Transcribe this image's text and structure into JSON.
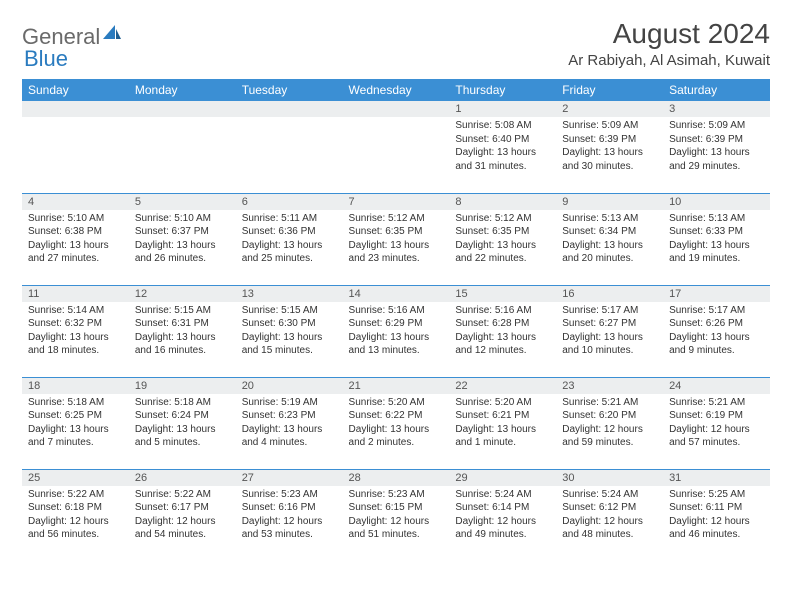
{
  "brand": {
    "part1": "General",
    "part2": "Blue"
  },
  "title": "August 2024",
  "location": "Ar Rabiyah, Al Asimah, Kuwait",
  "colors": {
    "header_bg": "#3b8fd4",
    "header_text": "#ffffff",
    "daynum_bg": "#eceeef",
    "rule": "#3b8fd4",
    "text": "#333333",
    "brand_gray": "#6a6a6a",
    "brand_blue": "#2a7bbf"
  },
  "day_headers": [
    "Sunday",
    "Monday",
    "Tuesday",
    "Wednesday",
    "Thursday",
    "Friday",
    "Saturday"
  ],
  "weeks": [
    [
      {},
      {},
      {},
      {},
      {
        "num": "1",
        "sunrise": "Sunrise: 5:08 AM",
        "sunset": "Sunset: 6:40 PM",
        "daylight1": "Daylight: 13 hours",
        "daylight2": "and 31 minutes."
      },
      {
        "num": "2",
        "sunrise": "Sunrise: 5:09 AM",
        "sunset": "Sunset: 6:39 PM",
        "daylight1": "Daylight: 13 hours",
        "daylight2": "and 30 minutes."
      },
      {
        "num": "3",
        "sunrise": "Sunrise: 5:09 AM",
        "sunset": "Sunset: 6:39 PM",
        "daylight1": "Daylight: 13 hours",
        "daylight2": "and 29 minutes."
      }
    ],
    [
      {
        "num": "4",
        "sunrise": "Sunrise: 5:10 AM",
        "sunset": "Sunset: 6:38 PM",
        "daylight1": "Daylight: 13 hours",
        "daylight2": "and 27 minutes."
      },
      {
        "num": "5",
        "sunrise": "Sunrise: 5:10 AM",
        "sunset": "Sunset: 6:37 PM",
        "daylight1": "Daylight: 13 hours",
        "daylight2": "and 26 minutes."
      },
      {
        "num": "6",
        "sunrise": "Sunrise: 5:11 AM",
        "sunset": "Sunset: 6:36 PM",
        "daylight1": "Daylight: 13 hours",
        "daylight2": "and 25 minutes."
      },
      {
        "num": "7",
        "sunrise": "Sunrise: 5:12 AM",
        "sunset": "Sunset: 6:35 PM",
        "daylight1": "Daylight: 13 hours",
        "daylight2": "and 23 minutes."
      },
      {
        "num": "8",
        "sunrise": "Sunrise: 5:12 AM",
        "sunset": "Sunset: 6:35 PM",
        "daylight1": "Daylight: 13 hours",
        "daylight2": "and 22 minutes."
      },
      {
        "num": "9",
        "sunrise": "Sunrise: 5:13 AM",
        "sunset": "Sunset: 6:34 PM",
        "daylight1": "Daylight: 13 hours",
        "daylight2": "and 20 minutes."
      },
      {
        "num": "10",
        "sunrise": "Sunrise: 5:13 AM",
        "sunset": "Sunset: 6:33 PM",
        "daylight1": "Daylight: 13 hours",
        "daylight2": "and 19 minutes."
      }
    ],
    [
      {
        "num": "11",
        "sunrise": "Sunrise: 5:14 AM",
        "sunset": "Sunset: 6:32 PM",
        "daylight1": "Daylight: 13 hours",
        "daylight2": "and 18 minutes."
      },
      {
        "num": "12",
        "sunrise": "Sunrise: 5:15 AM",
        "sunset": "Sunset: 6:31 PM",
        "daylight1": "Daylight: 13 hours",
        "daylight2": "and 16 minutes."
      },
      {
        "num": "13",
        "sunrise": "Sunrise: 5:15 AM",
        "sunset": "Sunset: 6:30 PM",
        "daylight1": "Daylight: 13 hours",
        "daylight2": "and 15 minutes."
      },
      {
        "num": "14",
        "sunrise": "Sunrise: 5:16 AM",
        "sunset": "Sunset: 6:29 PM",
        "daylight1": "Daylight: 13 hours",
        "daylight2": "and 13 minutes."
      },
      {
        "num": "15",
        "sunrise": "Sunrise: 5:16 AM",
        "sunset": "Sunset: 6:28 PM",
        "daylight1": "Daylight: 13 hours",
        "daylight2": "and 12 minutes."
      },
      {
        "num": "16",
        "sunrise": "Sunrise: 5:17 AM",
        "sunset": "Sunset: 6:27 PM",
        "daylight1": "Daylight: 13 hours",
        "daylight2": "and 10 minutes."
      },
      {
        "num": "17",
        "sunrise": "Sunrise: 5:17 AM",
        "sunset": "Sunset: 6:26 PM",
        "daylight1": "Daylight: 13 hours",
        "daylight2": "and 9 minutes."
      }
    ],
    [
      {
        "num": "18",
        "sunrise": "Sunrise: 5:18 AM",
        "sunset": "Sunset: 6:25 PM",
        "daylight1": "Daylight: 13 hours",
        "daylight2": "and 7 minutes."
      },
      {
        "num": "19",
        "sunrise": "Sunrise: 5:18 AM",
        "sunset": "Sunset: 6:24 PM",
        "daylight1": "Daylight: 13 hours",
        "daylight2": "and 5 minutes."
      },
      {
        "num": "20",
        "sunrise": "Sunrise: 5:19 AM",
        "sunset": "Sunset: 6:23 PM",
        "daylight1": "Daylight: 13 hours",
        "daylight2": "and 4 minutes."
      },
      {
        "num": "21",
        "sunrise": "Sunrise: 5:20 AM",
        "sunset": "Sunset: 6:22 PM",
        "daylight1": "Daylight: 13 hours",
        "daylight2": "and 2 minutes."
      },
      {
        "num": "22",
        "sunrise": "Sunrise: 5:20 AM",
        "sunset": "Sunset: 6:21 PM",
        "daylight1": "Daylight: 13 hours",
        "daylight2": "and 1 minute."
      },
      {
        "num": "23",
        "sunrise": "Sunrise: 5:21 AM",
        "sunset": "Sunset: 6:20 PM",
        "daylight1": "Daylight: 12 hours",
        "daylight2": "and 59 minutes."
      },
      {
        "num": "24",
        "sunrise": "Sunrise: 5:21 AM",
        "sunset": "Sunset: 6:19 PM",
        "daylight1": "Daylight: 12 hours",
        "daylight2": "and 57 minutes."
      }
    ],
    [
      {
        "num": "25",
        "sunrise": "Sunrise: 5:22 AM",
        "sunset": "Sunset: 6:18 PM",
        "daylight1": "Daylight: 12 hours",
        "daylight2": "and 56 minutes."
      },
      {
        "num": "26",
        "sunrise": "Sunrise: 5:22 AM",
        "sunset": "Sunset: 6:17 PM",
        "daylight1": "Daylight: 12 hours",
        "daylight2": "and 54 minutes."
      },
      {
        "num": "27",
        "sunrise": "Sunrise: 5:23 AM",
        "sunset": "Sunset: 6:16 PM",
        "daylight1": "Daylight: 12 hours",
        "daylight2": "and 53 minutes."
      },
      {
        "num": "28",
        "sunrise": "Sunrise: 5:23 AM",
        "sunset": "Sunset: 6:15 PM",
        "daylight1": "Daylight: 12 hours",
        "daylight2": "and 51 minutes."
      },
      {
        "num": "29",
        "sunrise": "Sunrise: 5:24 AM",
        "sunset": "Sunset: 6:14 PM",
        "daylight1": "Daylight: 12 hours",
        "daylight2": "and 49 minutes."
      },
      {
        "num": "30",
        "sunrise": "Sunrise: 5:24 AM",
        "sunset": "Sunset: 6:12 PM",
        "daylight1": "Daylight: 12 hours",
        "daylight2": "and 48 minutes."
      },
      {
        "num": "31",
        "sunrise": "Sunrise: 5:25 AM",
        "sunset": "Sunset: 6:11 PM",
        "daylight1": "Daylight: 12 hours",
        "daylight2": "and 46 minutes."
      }
    ]
  ]
}
